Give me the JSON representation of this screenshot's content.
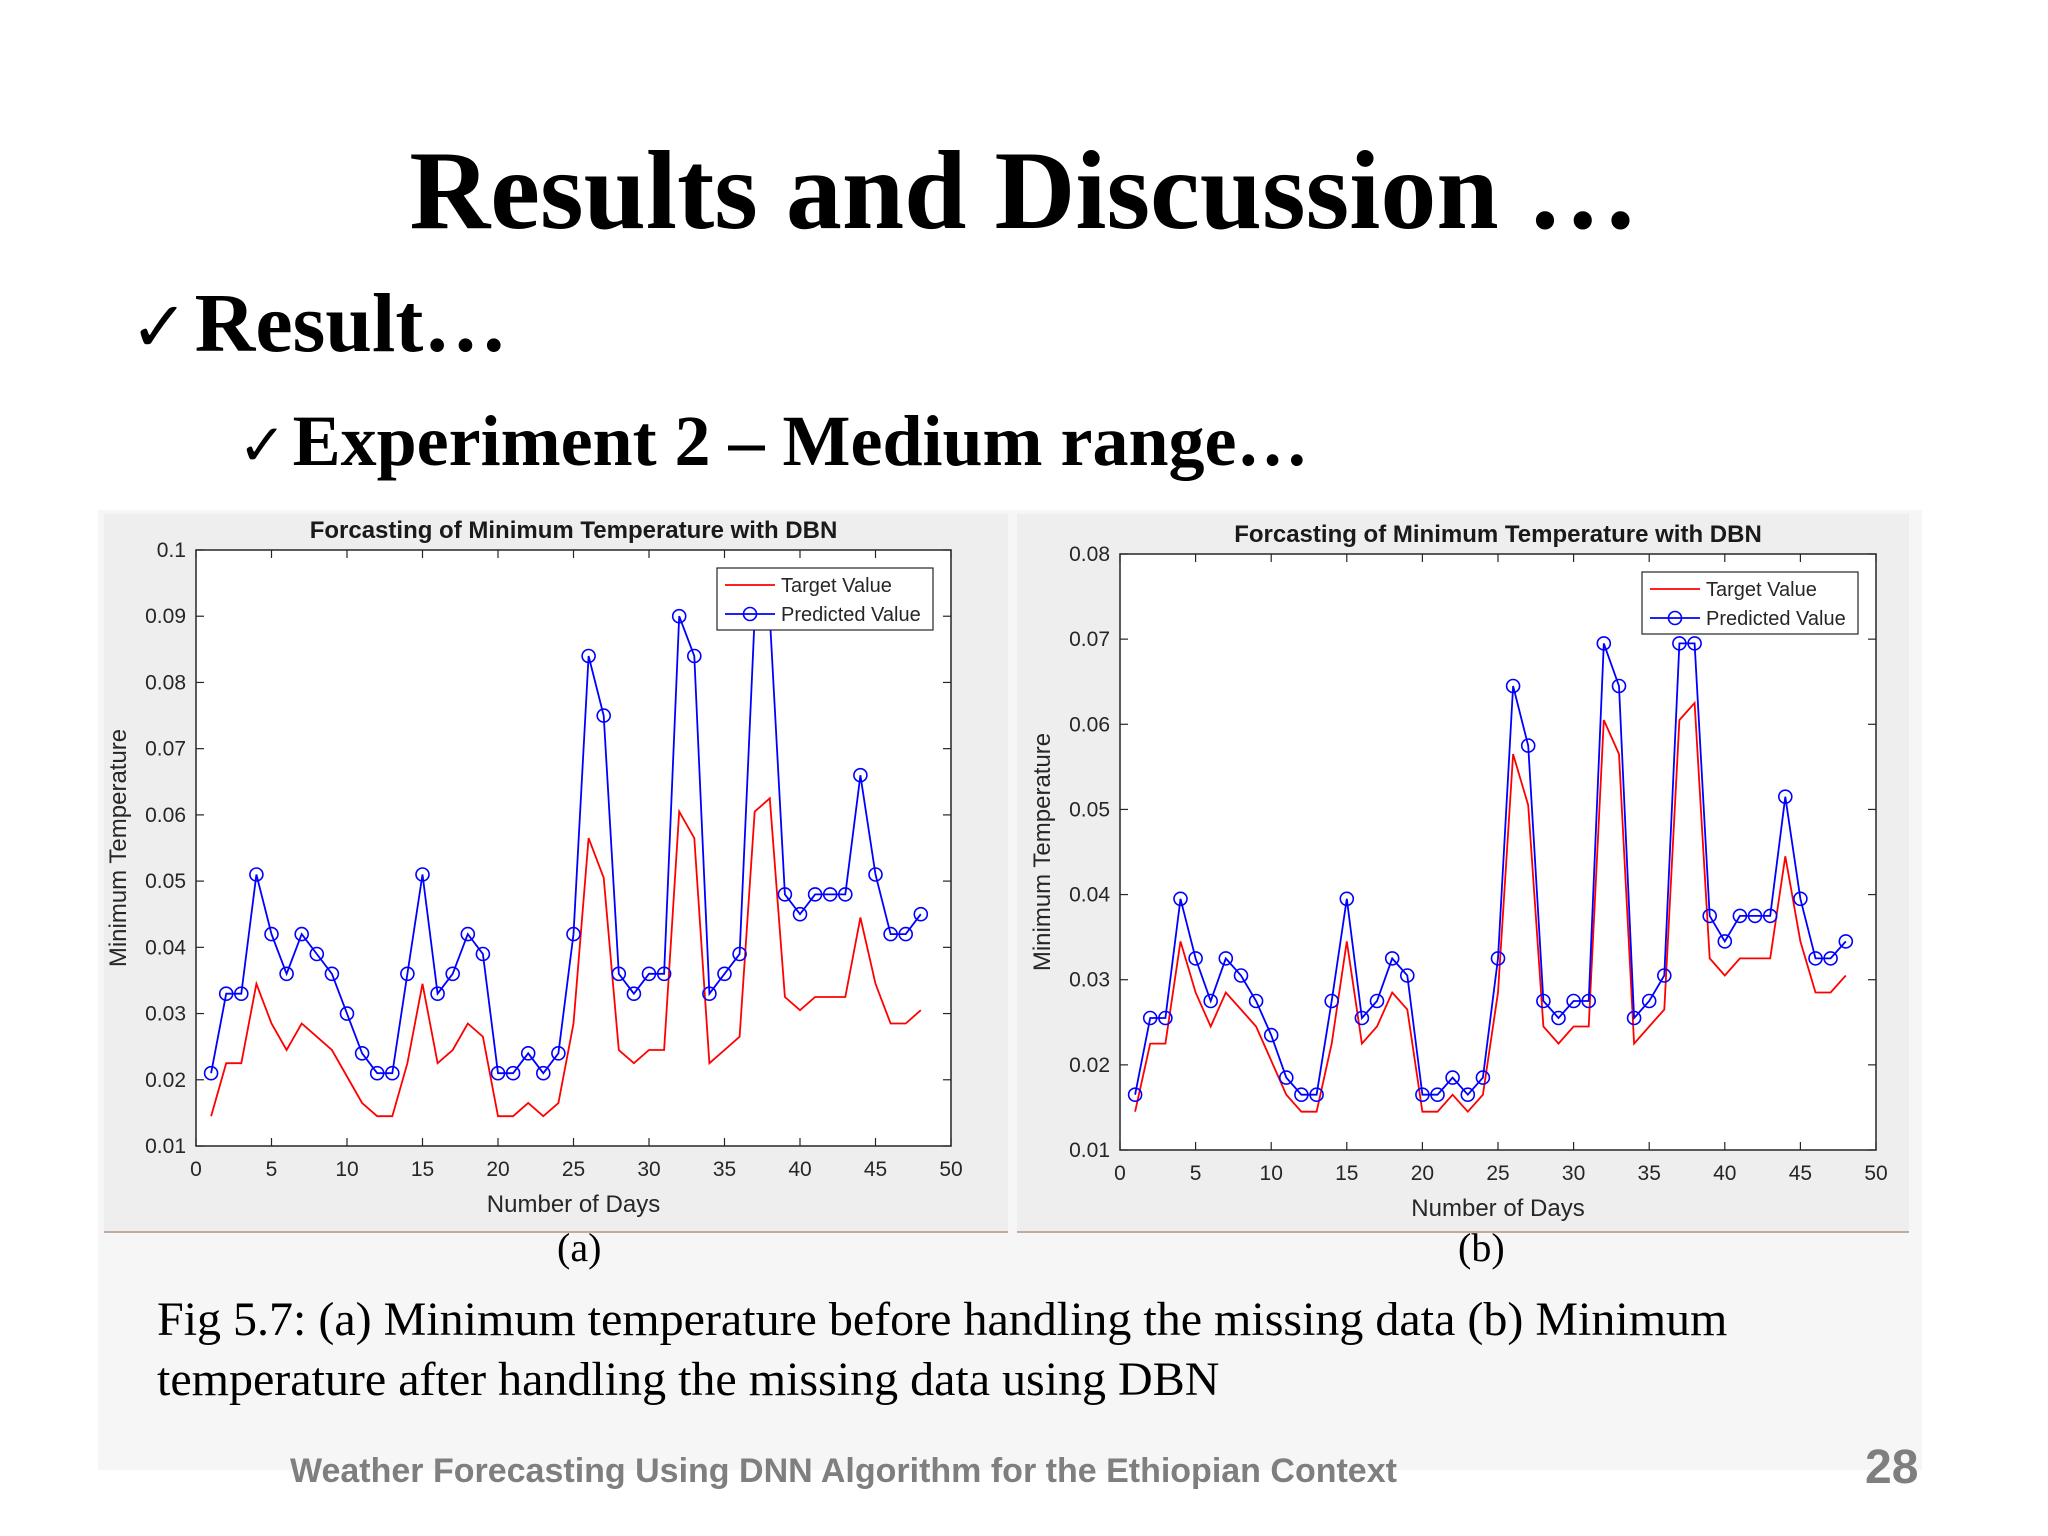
{
  "slide": {
    "title": "Results and Discussion …",
    "bullet_mark": "✓",
    "bullet_1": "Result…",
    "bullet_2": "Experiment 2 – Medium range…"
  },
  "figure": {
    "label_a": "(a)",
    "label_b": "(b)",
    "caption_line1": "Fig 5.7: (a) Minimum temperature before handling the missing data (b) Minimum",
    "caption_line2": "temperature after handling the missing data using DBN"
  },
  "footer": {
    "text": "Weather Forecasting Using DNN Algorithm for the Ethiopian Context",
    "page_number": "28"
  },
  "colors": {
    "target": "#ff0000",
    "predicted": "#0000ff",
    "footer": "#7f7f7f"
  },
  "chart_data": [
    {
      "type": "line",
      "title": "Forcasting of Minimum Temperature with DBN",
      "xlabel": "Number of Days",
      "ylabel": "Minimum Temperature",
      "xlim": [
        0,
        50
      ],
      "ylim": [
        0.01,
        0.1
      ],
      "xticks": [
        0,
        5,
        10,
        15,
        20,
        25,
        30,
        35,
        40,
        45,
        50
      ],
      "yticks": [
        0.01,
        0.02,
        0.03,
        0.04,
        0.05,
        0.06,
        0.07,
        0.08,
        0.09,
        0.1
      ],
      "ytick_labels": [
        "0.01",
        "0.02",
        "0.03",
        "0.04",
        "0.05",
        "0.06",
        "0.07",
        "0.08",
        "0.09",
        "0.1"
      ],
      "legend_position": "top-right",
      "x": [
        1,
        2,
        3,
        4,
        5,
        6,
        7,
        8,
        9,
        10,
        11,
        12,
        13,
        14,
        15,
        16,
        17,
        18,
        19,
        20,
        21,
        22,
        23,
        24,
        25,
        26,
        27,
        28,
        29,
        30,
        31,
        32,
        33,
        34,
        35,
        36,
        37,
        38,
        39,
        40,
        41,
        42,
        43,
        44,
        45,
        46,
        47,
        48
      ],
      "series": [
        {
          "name": "Target Value",
          "color": "#ff0000",
          "marker": "none",
          "values": [
            0.0145,
            0.0225,
            0.0225,
            0.0345,
            0.0285,
            0.0245,
            0.0285,
            0.0265,
            0.0245,
            0.0205,
            0.0165,
            0.0145,
            0.0145,
            0.0225,
            0.0345,
            0.0225,
            0.0245,
            0.0285,
            0.0265,
            0.0145,
            0.0145,
            0.0165,
            0.0145,
            0.0165,
            0.0285,
            0.0565,
            0.0505,
            0.0245,
            0.0225,
            0.0245,
            0.0245,
            0.0605,
            0.0565,
            0.0225,
            0.0245,
            0.0265,
            0.0605,
            0.0625,
            0.0325,
            0.0305,
            0.0325,
            0.0325,
            0.0325,
            0.0445,
            0.0345,
            0.0285,
            0.0285,
            0.0305
          ]
        },
        {
          "name": "Predicted Value",
          "color": "#0000ff",
          "marker": "circle",
          "values": [
            0.021,
            0.033,
            0.033,
            0.051,
            0.042,
            0.036,
            0.042,
            0.039,
            0.036,
            0.03,
            0.024,
            0.021,
            0.021,
            0.036,
            0.051,
            0.033,
            0.036,
            0.042,
            0.039,
            0.021,
            0.021,
            0.024,
            0.021,
            0.024,
            0.042,
            0.084,
            0.075,
            0.036,
            0.033,
            0.036,
            0.036,
            0.09,
            0.084,
            0.033,
            0.036,
            0.039,
            0.09,
            0.09,
            0.048,
            0.045,
            0.048,
            0.048,
            0.048,
            0.066,
            0.051,
            0.042,
            0.042,
            0.045
          ]
        }
      ]
    },
    {
      "type": "line",
      "title": "Forcasting of Minimum Temperature with DBN",
      "xlabel": "Number of Days",
      "ylabel": "Minimum Temperature",
      "xlim": [
        0,
        50
      ],
      "ylim": [
        0.01,
        0.08
      ],
      "xticks": [
        0,
        5,
        10,
        15,
        20,
        25,
        30,
        35,
        40,
        45,
        50
      ],
      "yticks": [
        0.01,
        0.02,
        0.03,
        0.04,
        0.05,
        0.06,
        0.07,
        0.08
      ],
      "ytick_labels": [
        "0.01",
        "0.02",
        "0.03",
        "0.04",
        "0.05",
        "0.06",
        "0.07",
        "0.08"
      ],
      "legend_position": "top-right",
      "x": [
        1,
        2,
        3,
        4,
        5,
        6,
        7,
        8,
        9,
        10,
        11,
        12,
        13,
        14,
        15,
        16,
        17,
        18,
        19,
        20,
        21,
        22,
        23,
        24,
        25,
        26,
        27,
        28,
        29,
        30,
        31,
        32,
        33,
        34,
        35,
        36,
        37,
        38,
        39,
        40,
        41,
        42,
        43,
        44,
        45,
        46,
        47,
        48
      ],
      "series": [
        {
          "name": "Target Value",
          "color": "#ff0000",
          "marker": "none",
          "values": [
            0.0145,
            0.0225,
            0.0225,
            0.0345,
            0.0285,
            0.0245,
            0.0285,
            0.0265,
            0.0245,
            0.0205,
            0.0165,
            0.0145,
            0.0145,
            0.0225,
            0.0345,
            0.0225,
            0.0245,
            0.0285,
            0.0265,
            0.0145,
            0.0145,
            0.0165,
            0.0145,
            0.0165,
            0.0285,
            0.0565,
            0.0505,
            0.0245,
            0.0225,
            0.0245,
            0.0245,
            0.0605,
            0.0565,
            0.0225,
            0.0245,
            0.0265,
            0.0605,
            0.0625,
            0.0325,
            0.0305,
            0.0325,
            0.0325,
            0.0325,
            0.0445,
            0.0345,
            0.0285,
            0.0285,
            0.0305
          ]
        },
        {
          "name": "Predicted Value",
          "color": "#0000ff",
          "marker": "circle",
          "values": [
            0.0165,
            0.0255,
            0.0255,
            0.0395,
            0.0325,
            0.0275,
            0.0325,
            0.0305,
            0.0275,
            0.0235,
            0.0185,
            0.0165,
            0.0165,
            0.0275,
            0.0395,
            0.0255,
            0.0275,
            0.0325,
            0.0305,
            0.0165,
            0.0165,
            0.0185,
            0.0165,
            0.0185,
            0.0325,
            0.0645,
            0.0575,
            0.0275,
            0.0255,
            0.0275,
            0.0275,
            0.0695,
            0.0645,
            0.0255,
            0.0275,
            0.0305,
            0.0695,
            0.0695,
            0.0375,
            0.0345,
            0.0375,
            0.0375,
            0.0375,
            0.0515,
            0.0395,
            0.0325,
            0.0325,
            0.0345
          ]
        }
      ]
    }
  ]
}
